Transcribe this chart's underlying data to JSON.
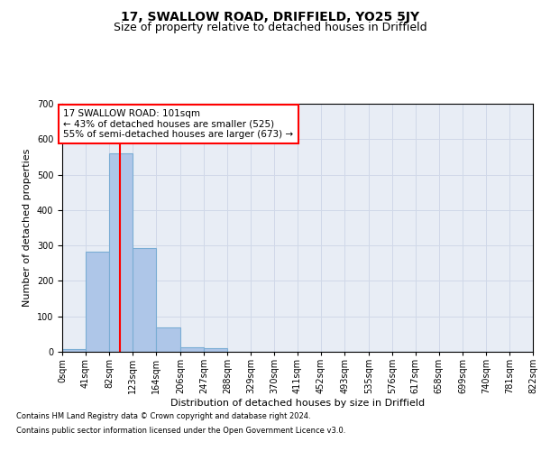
{
  "title": "17, SWALLOW ROAD, DRIFFIELD, YO25 5JY",
  "subtitle": "Size of property relative to detached houses in Driffield",
  "xlabel": "Distribution of detached houses by size in Driffield",
  "ylabel": "Number of detached properties",
  "footnote1": "Contains HM Land Registry data © Crown copyright and database right 2024.",
  "footnote2": "Contains public sector information licensed under the Open Government Licence v3.0.",
  "bar_edges": [
    0,
    41,
    82,
    123,
    164,
    206,
    247,
    288,
    329,
    370,
    411,
    452,
    493,
    535,
    576,
    617,
    658,
    699,
    740,
    781,
    822
  ],
  "bar_heights": [
    8,
    282,
    560,
    292,
    68,
    14,
    10,
    0,
    0,
    0,
    0,
    0,
    0,
    0,
    0,
    0,
    0,
    0,
    0,
    0
  ],
  "bar_color": "#aec6e8",
  "bar_edge_color": "#7aadd4",
  "red_line_x": 101,
  "annotation_box_text": "17 SWALLOW ROAD: 101sqm\n← 43% of detached houses are smaller (525)\n55% of semi-detached houses are larger (673) →",
  "ylim": [
    0,
    700
  ],
  "yticks": [
    0,
    100,
    200,
    300,
    400,
    500,
    600,
    700
  ],
  "tick_labels": [
    "0sqm",
    "41sqm",
    "82sqm",
    "123sqm",
    "164sqm",
    "206sqm",
    "247sqm",
    "288sqm",
    "329sqm",
    "370sqm",
    "411sqm",
    "452sqm",
    "493sqm",
    "535sqm",
    "576sqm",
    "617sqm",
    "658sqm",
    "699sqm",
    "740sqm",
    "781sqm",
    "822sqm"
  ],
  "grid_color": "#d0d8e8",
  "bg_color": "#e8edf5",
  "title_fontsize": 10,
  "subtitle_fontsize": 9,
  "axis_label_fontsize": 8,
  "tick_fontsize": 7,
  "annotation_fontsize": 7.5,
  "footnote_fontsize": 6
}
